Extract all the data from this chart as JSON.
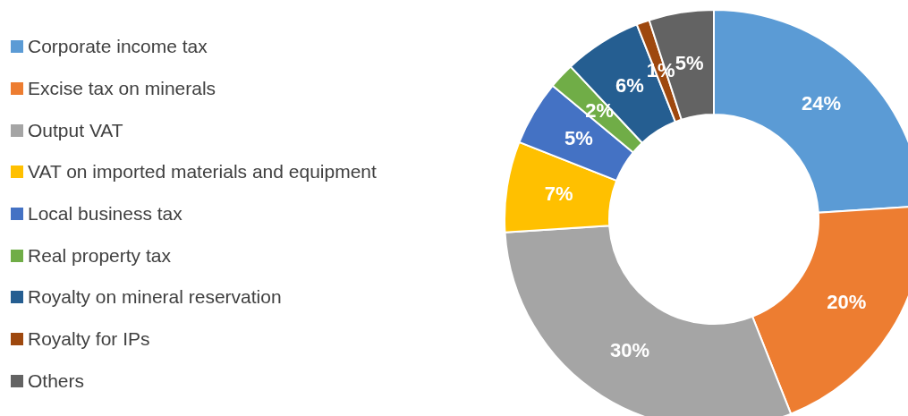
{
  "chart_data": {
    "type": "donut",
    "categories": [
      "Corporate income tax",
      "Excise tax on minerals",
      "Output VAT",
      "VAT on imported materials and equipment",
      "Local business tax",
      "Real property tax",
      "Royalty on mineral reservation",
      "Royalty for IPs",
      "Others"
    ],
    "values": [
      24,
      20,
      30,
      7,
      5,
      2,
      6,
      1,
      5
    ],
    "value_labels": [
      "24%",
      "20%",
      "30%",
      "7%",
      "5%",
      "2%",
      "6%",
      "1%",
      "5%"
    ],
    "colors": [
      "#5b9bd5",
      "#ed7d31",
      "#a5a5a5",
      "#ffc000",
      "#4472c4",
      "#70ad47",
      "#255e91",
      "#9e480e",
      "#636363"
    ],
    "legend": "left"
  }
}
